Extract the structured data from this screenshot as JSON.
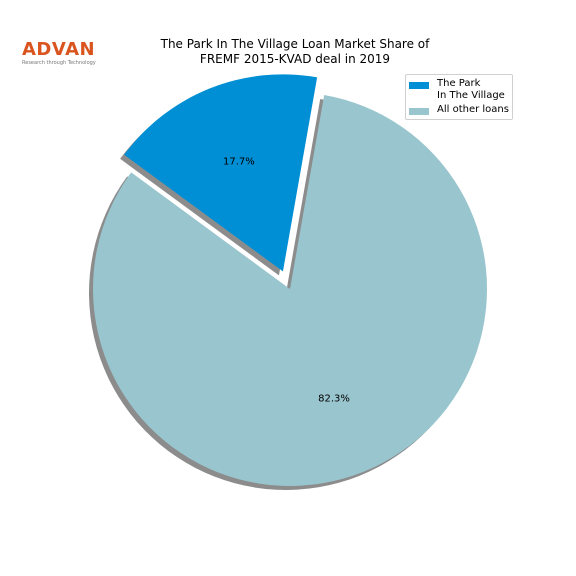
{
  "logo": {
    "word": "ADVAN",
    "tagline": "Research through Technology"
  },
  "chart_data": {
    "type": "pie",
    "title_lines": [
      "The Park In The Village Loan Market Share of",
      "FREMF 2015-KVAD deal in 2019"
    ],
    "slices": [
      {
        "label": "The Park\nIn The Village",
        "value": 17.7,
        "value_label": "17.7%",
        "color": "#008fd5",
        "exploded": true
      },
      {
        "label": "All other loans",
        "value": 82.3,
        "value_label": "82.3%",
        "color": "#99c5ce",
        "exploded": false
      }
    ],
    "legend_position": "upper-right",
    "shadow": true
  }
}
